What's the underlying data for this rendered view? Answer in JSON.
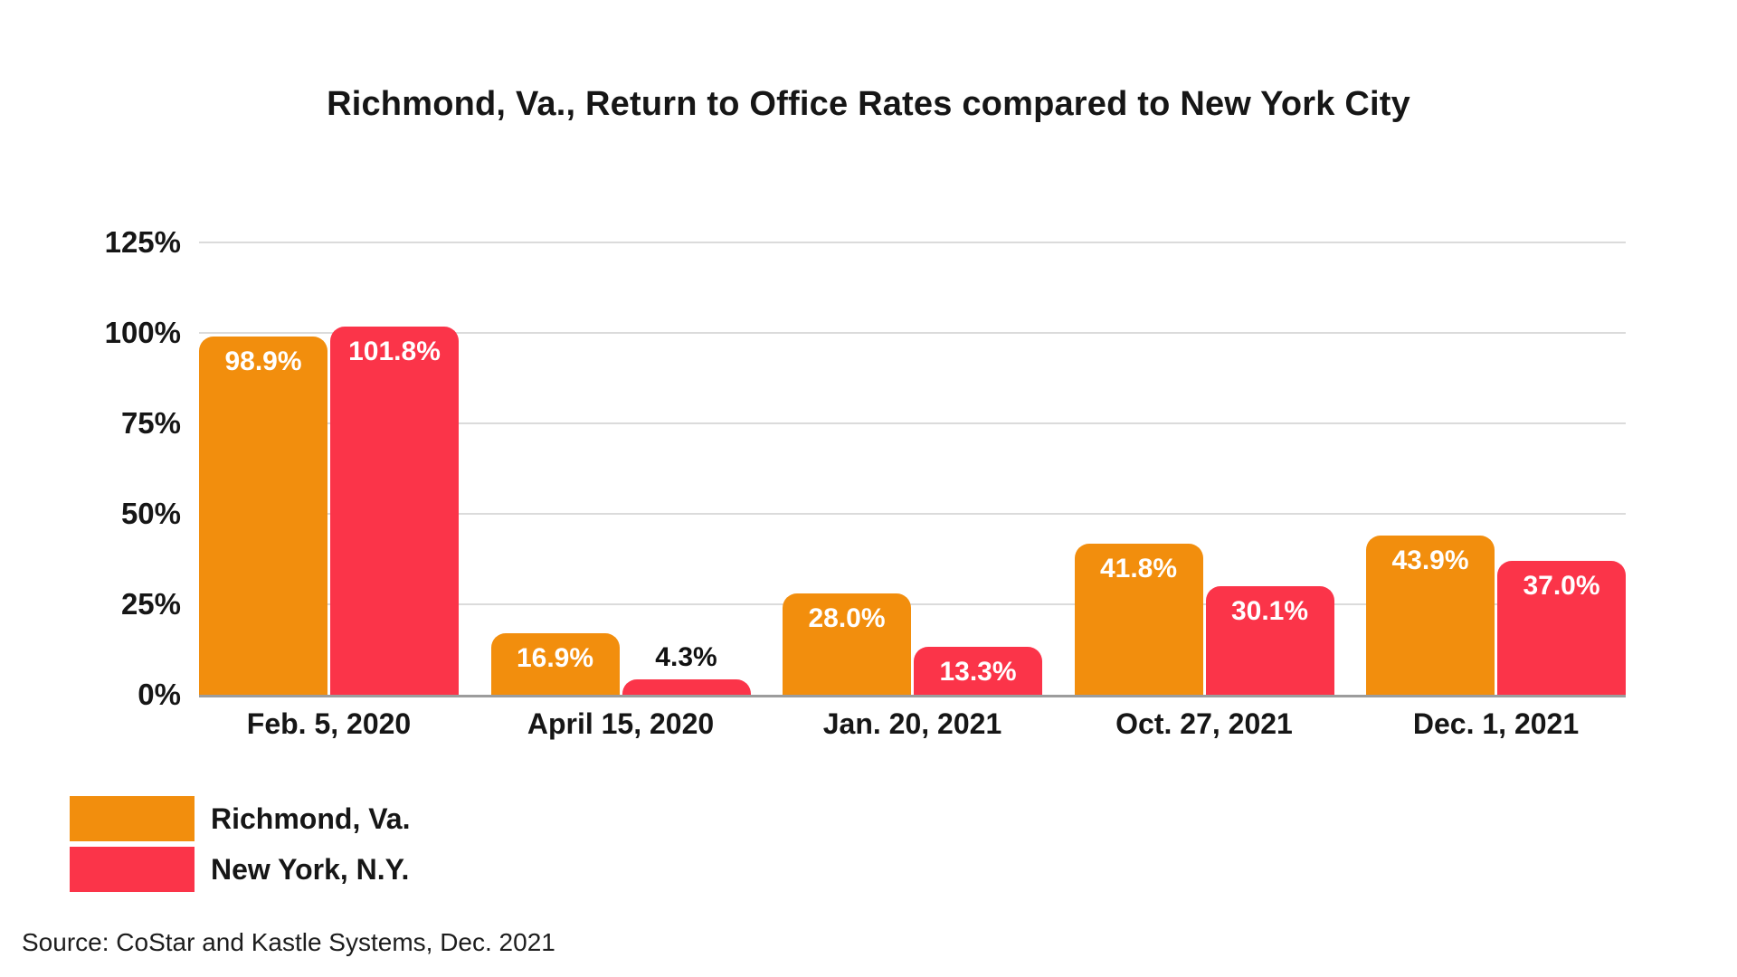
{
  "chart_data": {
    "type": "bar",
    "title": "Richmond, Va., Return to Office Rates compared to New York City",
    "categories": [
      "Feb. 5, 2020",
      "April 15, 2020",
      "Jan. 20, 2021",
      "Oct. 27, 2021",
      "Dec. 1, 2021"
    ],
    "series": [
      {
        "name": "Richmond, Va.",
        "color": "#F28E0D",
        "values": [
          98.9,
          16.9,
          28.0,
          41.8,
          43.9
        ],
        "labels": [
          "98.9%",
          "16.9%",
          "28.0%",
          "41.8%",
          "43.9%"
        ]
      },
      {
        "name": "New York, N.Y.",
        "color": "#FB3449",
        "values": [
          101.8,
          4.3,
          13.3,
          30.1,
          37.0
        ],
        "labels": [
          "101.8%",
          "4.3%",
          "13.3%",
          "30.1%",
          "37.0%"
        ]
      }
    ],
    "xlabel": "",
    "ylabel": "",
    "ylim": [
      0,
      125
    ],
    "ytick_values": [
      0,
      25,
      50,
      75,
      100,
      125
    ],
    "ytick_labels": [
      "0%",
      "25%",
      "50%",
      "75%",
      "100%",
      "125%"
    ],
    "grid": true,
    "legend_position": "bottom-left",
    "bar_label_color_inside": "#FFFFFF",
    "bar_label_color_outside": "#111111",
    "gridline_color": "#DBDBDB",
    "axis_line_color": "#9C9C9C"
  },
  "source": "Source: CoStar and Kastle Systems, Dec. 2021"
}
